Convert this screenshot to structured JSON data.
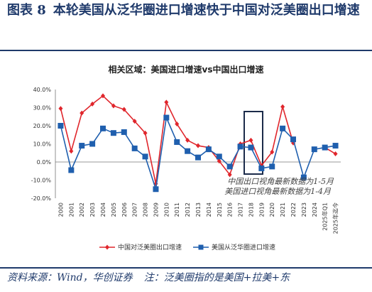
{
  "figure": {
    "label": "图表 8",
    "title": "本轮美国从泛华圈进口增速快于中国对泛美圈出口增速"
  },
  "source": {
    "text": "资料来源：Wind，华创证券",
    "note": "注：泛美圈指的是美国+拉美+东"
  },
  "chart_data": {
    "type": "line",
    "title": "相关区域：美国进口增速vs中国出口增速",
    "categories": [
      "2000",
      "2001",
      "2002",
      "2003",
      "2004",
      "2005",
      "2006",
      "2007",
      "2008",
      "2009",
      "2010",
      "2011",
      "2012",
      "2013",
      "2014",
      "2015",
      "2016",
      "2017",
      "2018",
      "2019",
      "2020",
      "2021",
      "2022",
      "2023",
      "2024",
      "2025年Q1",
      "2025年迄今"
    ],
    "ylim": [
      -20,
      40
    ],
    "yticks": [
      "40.0%",
      "30.0%",
      "20.0%",
      "10.0%",
      "0.0%",
      "-10.0%",
      "-20.0%"
    ],
    "series": [
      {
        "name": "中国对泛美圈出口增速",
        "color": "#e0262c",
        "marker": "diamond",
        "values": [
          29.5,
          6,
          27,
          32,
          36.5,
          31,
          29,
          22.5,
          16,
          -12,
          33,
          21,
          12,
          9,
          8,
          0.5,
          -7,
          10,
          12,
          -2,
          5.5,
          30.5,
          10.5,
          null,
          null,
          8,
          4.5
        ]
      },
      {
        "name": "美国从泛华圈进口增速",
        "color": "#1f5fae",
        "marker": "square",
        "values": [
          20,
          -4.5,
          9,
          10,
          18.5,
          16,
          16.5,
          7.5,
          3,
          -15,
          24.5,
          11,
          6,
          2.5,
          7,
          3,
          -2.5,
          8.5,
          8,
          -3.5,
          -2.5,
          18.5,
          12.5,
          -8.5,
          7,
          8,
          9
        ]
      }
    ],
    "annotation": [
      "中国出口视角最新数据为1-5月",
      "美国进口视角最新数据为1-4月"
    ],
    "legend_position": "bottom"
  }
}
